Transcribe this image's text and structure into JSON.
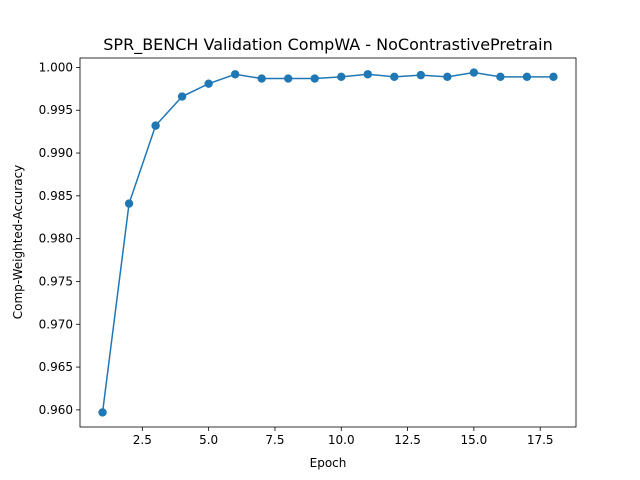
{
  "chart_data": {
    "type": "line",
    "title": "SPR_BENCH Validation CompWA - NoContrastivePretrain",
    "xlabel": "Epoch",
    "ylabel": "Comp-Weighted-Accuracy",
    "xlim": [
      0.15,
      18.85
    ],
    "ylim": [
      0.958,
      1.0011
    ],
    "xticks": [
      2.5,
      5.0,
      7.5,
      10.0,
      12.5,
      15.0,
      17.5
    ],
    "xtick_labels": [
      "2.5",
      "5.0",
      "7.5",
      "10.0",
      "12.5",
      "15.0",
      "17.5"
    ],
    "yticks": [
      0.96,
      0.965,
      0.97,
      0.975,
      0.98,
      0.985,
      0.99,
      0.995,
      1.0
    ],
    "ytick_labels": [
      "0.960",
      "0.965",
      "0.970",
      "0.975",
      "0.980",
      "0.985",
      "0.990",
      "0.995",
      "1.000"
    ],
    "grid": false,
    "series": [
      {
        "color": "#1f77b4",
        "marker": "circle",
        "x": [
          1,
          2,
          3,
          4,
          5,
          6,
          7,
          8,
          9,
          10,
          11,
          12,
          13,
          14,
          15,
          16,
          17,
          18
        ],
        "y": [
          0.9597,
          0.9841,
          0.9932,
          0.9966,
          0.9981,
          0.9992,
          0.9987,
          0.9987,
          0.9987,
          0.9989,
          0.9992,
          0.9989,
          0.9991,
          0.9989,
          0.9994,
          0.9989,
          0.9989,
          0.9989
        ]
      }
    ]
  }
}
